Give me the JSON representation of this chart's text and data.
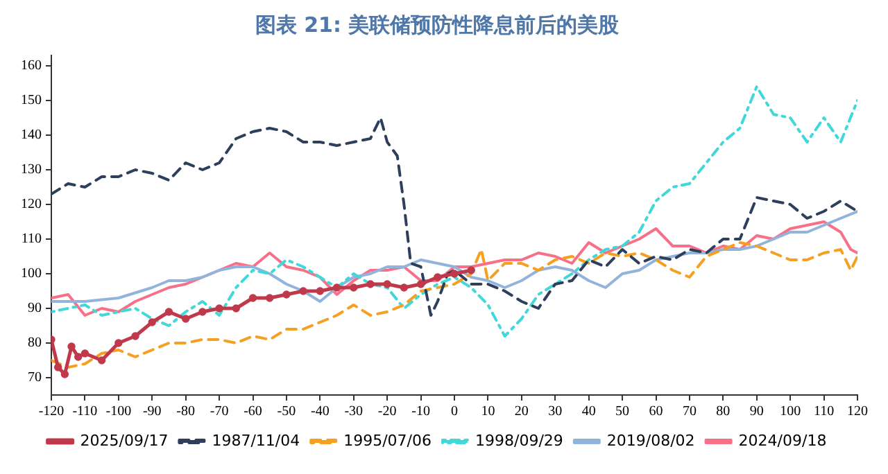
{
  "chart_data": {
    "type": "line",
    "title": "图表 21: 美联储预防性降息前后的美股",
    "xlim": [
      -120,
      120
    ],
    "xticks": [
      -120,
      -110,
      -100,
      -90,
      -80,
      -70,
      -60,
      -50,
      -40,
      -30,
      -20,
      -10,
      0,
      10,
      20,
      30,
      40,
      50,
      60,
      70,
      80,
      90,
      100,
      110,
      120
    ],
    "ylim": [
      65,
      163
    ],
    "yticks": [
      70,
      80,
      90,
      100,
      110,
      120,
      130,
      140,
      150,
      160
    ],
    "grid": false,
    "legend": "bottom",
    "series": [
      {
        "name": "2025/09/17",
        "color": "#c0394b",
        "line_style": "solid",
        "marker": "circle",
        "x": [
          -120,
          -118,
          -116,
          -114,
          -112,
          -110,
          -105,
          -100,
          -95,
          -90,
          -85,
          -80,
          -75,
          -70,
          -65,
          -60,
          -55,
          -50,
          -45,
          -40,
          -35,
          -30,
          -25,
          -20,
          -15,
          -10,
          -5,
          0,
          5
        ],
        "values": [
          81,
          73,
          71,
          79,
          76,
          77,
          75,
          80,
          82,
          86,
          89,
          87,
          89,
          90,
          90,
          93,
          93,
          94,
          95,
          95,
          96,
          96,
          97,
          97,
          96,
          97,
          99,
          100,
          101
        ]
      },
      {
        "name": "1987/11/04",
        "color": "#2e3f5c",
        "line_style": "dashed",
        "marker": "none",
        "x": [
          -120,
          -115,
          -110,
          -105,
          -100,
          -95,
          -90,
          -85,
          -80,
          -75,
          -70,
          -65,
          -60,
          -55,
          -50,
          -45,
          -40,
          -35,
          -30,
          -25,
          -22,
          -20,
          -17,
          -15,
          -13,
          -10,
          -7,
          -5,
          -2,
          0,
          5,
          10,
          15,
          20,
          25,
          30,
          35,
          40,
          45,
          50,
          55,
          60,
          65,
          70,
          75,
          80,
          85,
          90,
          95,
          100,
          105,
          110,
          115,
          120
        ],
        "values": [
          123,
          126,
          125,
          128,
          128,
          130,
          129,
          127,
          132,
          130,
          132,
          139,
          141,
          142,
          141,
          138,
          138,
          137,
          138,
          139,
          145,
          138,
          134,
          120,
          103,
          102,
          88,
          92,
          100,
          101,
          97,
          97,
          95,
          92,
          90,
          97,
          98,
          104,
          102,
          107,
          103,
          105,
          104,
          107,
          106,
          110,
          110,
          122,
          121,
          120,
          116,
          118,
          121,
          118
        ]
      },
      {
        "name": "1995/07/06",
        "color": "#f5a020",
        "line_style": "dashed",
        "marker": "none",
        "x": [
          -120,
          -115,
          -110,
          -105,
          -100,
          -95,
          -90,
          -85,
          -80,
          -75,
          -70,
          -65,
          -60,
          -55,
          -50,
          -45,
          -40,
          -35,
          -30,
          -25,
          -20,
          -15,
          -10,
          -5,
          0,
          5,
          8,
          10,
          15,
          20,
          25,
          30,
          35,
          40,
          45,
          50,
          55,
          60,
          65,
          70,
          75,
          80,
          85,
          90,
          95,
          100,
          105,
          110,
          115,
          118,
          120
        ],
        "values": [
          75,
          73,
          74,
          77,
          78,
          76,
          78,
          80,
          80,
          81,
          81,
          80,
          82,
          81,
          84,
          84,
          86,
          88,
          91,
          88,
          89,
          91,
          95,
          96,
          97,
          100,
          107,
          98,
          103,
          103,
          101,
          104,
          105,
          103,
          106,
          105,
          106,
          104,
          101,
          99,
          105,
          107,
          109,
          108,
          106,
          104,
          104,
          106,
          107,
          101,
          105
        ]
      },
      {
        "name": "1998/09/29",
        "color": "#40d8d8",
        "line_style": "dotted",
        "marker": "none",
        "x": [
          -120,
          -115,
          -110,
          -105,
          -100,
          -95,
          -90,
          -85,
          -80,
          -75,
          -70,
          -65,
          -60,
          -55,
          -50,
          -45,
          -40,
          -35,
          -30,
          -25,
          -20,
          -15,
          -10,
          -5,
          0,
          5,
          10,
          15,
          20,
          25,
          30,
          35,
          40,
          45,
          50,
          55,
          60,
          65,
          70,
          75,
          80,
          85,
          90,
          95,
          100,
          105,
          110,
          115,
          120
        ],
        "values": [
          89,
          90,
          91,
          88,
          89,
          90,
          87,
          85,
          89,
          92,
          88,
          96,
          101,
          100,
          104,
          102,
          99,
          96,
          100,
          97,
          96,
          90,
          94,
          97,
          99,
          96,
          91,
          82,
          87,
          94,
          97,
          100,
          104,
          107,
          108,
          112,
          121,
          125,
          126,
          132,
          138,
          142,
          154,
          146,
          145,
          138,
          145,
          138,
          150
        ]
      },
      {
        "name": "2019/08/02",
        "color": "#92b4dc",
        "line_style": "solid",
        "marker": "none",
        "x": [
          -120,
          -110,
          -100,
          -90,
          -85,
          -80,
          -75,
          -70,
          -65,
          -60,
          -55,
          -50,
          -45,
          -40,
          -35,
          -30,
          -25,
          -20,
          -15,
          -10,
          -5,
          0,
          5,
          10,
          15,
          20,
          25,
          30,
          35,
          40,
          45,
          50,
          55,
          60,
          65,
          70,
          75,
          80,
          85,
          90,
          95,
          100,
          105,
          110,
          115,
          120
        ],
        "values": [
          92,
          92,
          93,
          96,
          98,
          98,
          99,
          101,
          102,
          102,
          100,
          97,
          95,
          92,
          96,
          99,
          100,
          102,
          102,
          104,
          103,
          102,
          99,
          98,
          96,
          98,
          101,
          102,
          101,
          98,
          96,
          100,
          101,
          104,
          105,
          106,
          106,
          107,
          107,
          108,
          110,
          112,
          112,
          114,
          116,
          118
        ]
      },
      {
        "name": "2024/09/18",
        "color": "#f77088",
        "line_style": "solid",
        "marker": "none",
        "x": [
          -120,
          -115,
          -110,
          -105,
          -100,
          -95,
          -90,
          -85,
          -80,
          -75,
          -70,
          -65,
          -60,
          -55,
          -50,
          -45,
          -40,
          -35,
          -30,
          -25,
          -20,
          -15,
          -10,
          -5,
          0,
          5,
          10,
          15,
          20,
          25,
          30,
          35,
          40,
          45,
          50,
          55,
          60,
          65,
          70,
          75,
          80,
          85,
          90,
          95,
          100,
          105,
          110,
          115,
          118,
          120
        ],
        "values": [
          93,
          94,
          88,
          90,
          89,
          92,
          94,
          96,
          97,
          99,
          101,
          103,
          102,
          106,
          102,
          101,
          99,
          94,
          98,
          101,
          101,
          102,
          98,
          98,
          102,
          102,
          103,
          104,
          104,
          106,
          105,
          103,
          109,
          106,
          108,
          110,
          113,
          108,
          108,
          106,
          108,
          107,
          111,
          110,
          113,
          114,
          115,
          112,
          107,
          106
        ]
      }
    ]
  }
}
